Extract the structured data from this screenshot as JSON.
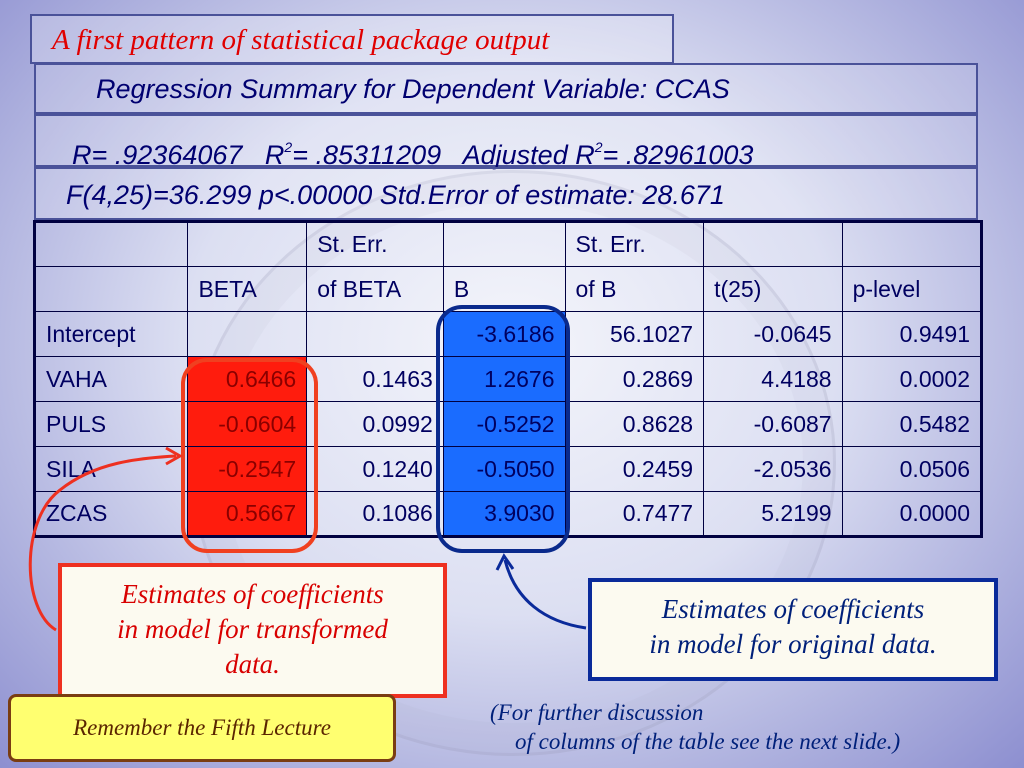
{
  "slide_title": "A first pattern of statistical package output",
  "summary": {
    "line1": "Regression Summary for Dependent Variable: CCAS",
    "r": "R= .92364067",
    "r2_label": "R",
    "r2_value": "= .85311209",
    "adj_label": "Adjusted R",
    "adj_value": "= .82961003",
    "sq": "2",
    "line3": "F(4,25)=36.299  p<.00000 Std.Error of estimate: 28.671"
  },
  "table": {
    "header1": [
      "",
      "",
      "St. Err.",
      "",
      "St. Err.",
      "",
      ""
    ],
    "header2": [
      "",
      "BETA",
      "of BETA",
      "B",
      "of B",
      "t(25)",
      "p-level"
    ],
    "rows": [
      [
        "Intercept",
        "",
        "",
        "-3.6186",
        "56.1027",
        "-0.0645",
        "0.9491"
      ],
      [
        "VAHA",
        "0.6466",
        "0.1463",
        "1.2676",
        "0.2869",
        "4.4188",
        "0.0002"
      ],
      [
        "PULS",
        "-0.0604",
        "0.0992",
        "-0.5252",
        "0.8628",
        "-0.6087",
        "0.5482"
      ],
      [
        "SILA",
        "-0.2547",
        "0.1240",
        "-0.5050",
        "0.2459",
        "-2.0536",
        "0.0506"
      ],
      [
        "ZCAS",
        "0.5667",
        "0.1086",
        "3.9030",
        "0.7477",
        "5.2199",
        "0.0000"
      ]
    ]
  },
  "callouts": {
    "transformed": [
      "Estimates of coefficients",
      "in model for transformed",
      "data."
    ],
    "original": [
      "Estimates of coefficients",
      "in model for original data."
    ]
  },
  "remember": "Remember the Fifth Lecture",
  "further": [
    "(For further discussion",
    "of columns of the table see the next slide.)"
  ],
  "colors": {
    "beta_highlight": "#ff1c0d",
    "b_highlight": "#1a6cff",
    "title_red": "#e00000",
    "text_navy": "#000070"
  }
}
